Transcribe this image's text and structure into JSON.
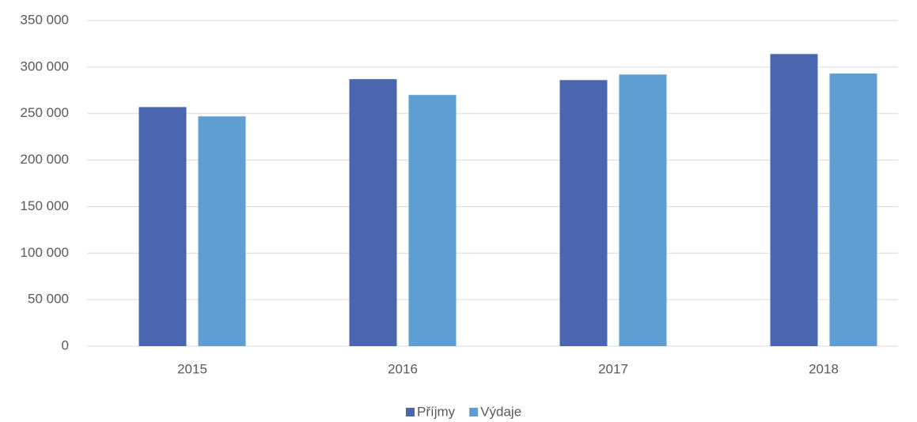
{
  "chart_data": {
    "type": "bar",
    "categories": [
      "2015",
      "2016",
      "2017",
      "2018"
    ],
    "series": [
      {
        "name": "Příjmy",
        "color": "#4a66ae",
        "values": [
          257000,
          287000,
          286000,
          314000
        ]
      },
      {
        "name": "Výdaje",
        "color": "#5f9ed3",
        "values": [
          247000,
          270000,
          292000,
          293000
        ]
      }
    ],
    "ylim": [
      0,
      350000
    ],
    "yticks": [
      0,
      {
        "value": 50000,
        "label": "50 000"
      },
      {
        "value": 100000,
        "label": "100 000"
      },
      {
        "value": 150000,
        "label": "150 000"
      },
      {
        "value": 200000,
        "label": "200 000"
      },
      {
        "value": 250000,
        "label": "250 000"
      },
      {
        "value": 300000,
        "label": "300 000"
      },
      {
        "value": 350000,
        "label": "350 000"
      }
    ],
    "grid": true,
    "legend": "bottom"
  }
}
